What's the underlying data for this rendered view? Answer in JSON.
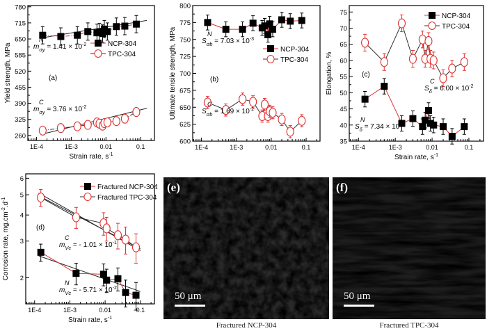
{
  "chart_data": [
    {
      "type": "scatter",
      "panel_label": "(a)",
      "xlabel": "Strain rate, s",
      "xlabel_sup": "-1",
      "ylabel": "Yield strength, MPa",
      "xscale": "log",
      "xlim": [
        5.6e-05,
        0.25
      ],
      "xticks": [
        0.0001,
        0.001,
        0.01,
        0.1
      ],
      "xtick_labels": [
        "1E-4",
        "1E-3",
        "0.01",
        "0.1"
      ],
      "ylim": [
        240,
        785
      ],
      "yticks": [
        260,
        325,
        390,
        455,
        520,
        585,
        650,
        715,
        780
      ],
      "yscale": "linear",
      "legend": "center-right",
      "series": [
        {
          "name": "NCP-304",
          "marker": "filled-square",
          "color": "#000000",
          "line_color": "#e03030",
          "line_style": "dashdot",
          "error": 35,
          "x": [
            0.00015,
            0.0005,
            0.0015,
            0.003,
            0.0055,
            0.0065,
            0.008,
            0.009,
            0.011,
            0.02,
            0.035,
            0.075
          ],
          "y": [
            665,
            660,
            665,
            680,
            675,
            678,
            672,
            690,
            680,
            700,
            702,
            710
          ]
        },
        {
          "name": "TPC-304",
          "marker": "open-circle",
          "color": "#e03030",
          "line_color": "#333333",
          "line_style": "dashdot",
          "error": 16,
          "x": [
            0.00015,
            0.0005,
            0.0015,
            0.003,
            0.0055,
            0.0065,
            0.008,
            0.009,
            0.011,
            0.02,
            0.035,
            0.075
          ],
          "y": [
            280,
            290,
            297,
            303,
            313,
            308,
            300,
            310,
            313,
            318,
            328,
            355
          ]
        }
      ],
      "fit_lines": [
        {
          "x": [
            0.00015,
            0.15
          ],
          "y": [
            655,
            725
          ]
        },
        {
          "x": [
            0.00015,
            0.15
          ],
          "y": [
            266,
            370
          ]
        }
      ],
      "annotations": [
        {
          "super": "N",
          "base": "m",
          "sub": "σy",
          "value": " = 1.41 × 10",
          "exp": "-2"
        },
        {
          "super": "C",
          "base": "m",
          "sub": "σy",
          "value": " = 3.76 × 10",
          "exp": "-2"
        }
      ]
    },
    {
      "type": "scatter",
      "panel_label": "(b)",
      "xlabel": "",
      "ylabel": "Ultimate tensile strength, MPa",
      "xscale": "log",
      "xlim": [
        5.6e-05,
        0.25
      ],
      "xticks": [
        0.0001,
        0.001,
        0.01,
        0.1
      ],
      "xtick_labels": [
        "1E-4",
        "1E-3",
        "0.01",
        "0.1"
      ],
      "ylim": [
        600,
        800
      ],
      "yticks": [
        600,
        625,
        650,
        675,
        700,
        725,
        750,
        775,
        800
      ],
      "yscale": "linear",
      "legend": "center-right",
      "series": [
        {
          "name": "NCP-304",
          "marker": "filled-square",
          "color": "#000000",
          "line_color": "#e03030",
          "line_style": "solid",
          "error": 11,
          "x": [
            0.00015,
            0.0005,
            0.0015,
            0.003,
            0.0055,
            0.0065,
            0.008,
            0.009,
            0.011,
            0.02,
            0.035,
            0.075
          ],
          "y": [
            775,
            765,
            765,
            774,
            767,
            770,
            757,
            773,
            765,
            779,
            777,
            778
          ]
        },
        {
          "name": "TPC-304",
          "marker": "open-circle",
          "color": "#e03030",
          "line_color": "#333333",
          "line_style": "solid",
          "error": 9,
          "x": [
            0.00015,
            0.0005,
            0.0015,
            0.003,
            0.0055,
            0.0065,
            0.008,
            0.009,
            0.011,
            0.02,
            0.035,
            0.075
          ],
          "y": [
            657,
            646,
            662,
            658,
            637,
            654,
            637,
            644,
            642,
            632,
            614,
            630
          ]
        }
      ],
      "fit_lines": [],
      "annotations": [
        {
          "super": "N",
          "base": "S",
          "sub": "σb",
          "value": " = 7.03 × 10",
          "exp": "-3"
        },
        {
          "super": "C",
          "base": "S",
          "sub": "σb",
          "value": " = 1.69 × 10",
          "exp": "-2"
        }
      ]
    },
    {
      "type": "scatter",
      "panel_label": "(c)",
      "xlabel": "Strain rate, s",
      "xlabel_sup": "-1",
      "ylabel": "Elongation, %",
      "xscale": "log",
      "xlim": [
        5.6e-05,
        0.25
      ],
      "xticks": [
        0.0001,
        0.001,
        0.01,
        0.1
      ],
      "xtick_labels": [
        "1E-4",
        "1E-3",
        "0.01",
        "0.1"
      ],
      "ylim": [
        35,
        77
      ],
      "yticks": [
        35,
        40,
        45,
        50,
        55,
        60,
        65,
        70,
        75
      ],
      "yscale": "linear",
      "legend": "top-right",
      "series": [
        {
          "name": "NCP-304",
          "marker": "filled-square",
          "color": "#000000",
          "line_color": "#e03030",
          "line_style": "solid",
          "error": 2.4,
          "x": [
            0.00015,
            0.0005,
            0.0015,
            0.003,
            0.0055,
            0.0065,
            0.008,
            0.009,
            0.011,
            0.02,
            0.035,
            0.075
          ],
          "y": [
            48,
            52,
            40.5,
            42,
            39.5,
            41.5,
            44.5,
            40.5,
            40,
            39.5,
            36.5,
            39.5
          ]
        },
        {
          "name": "TPC-304",
          "marker": "open-circle",
          "color": "#e03030",
          "line_color": "#333333",
          "line_style": "solid",
          "error": 2.6,
          "x": [
            0.00015,
            0.0005,
            0.0015,
            0.003,
            0.0055,
            0.0065,
            0.008,
            0.009,
            0.011,
            0.02,
            0.035,
            0.075
          ],
          "y": [
            65.5,
            59.5,
            71.5,
            60.5,
            66.5,
            60.5,
            66,
            60.5,
            60,
            54.5,
            57.5,
            59.5
          ]
        }
      ],
      "fit_lines": [],
      "annotations": [
        {
          "super": "C",
          "base": "S",
          "sub": "δ",
          "value": " = 6.00 × 10",
          "exp": "-2"
        },
        {
          "super": "N",
          "base": "S",
          "sub": "δ",
          "value": " = 7.34 × 10",
          "exp": "-3"
        }
      ]
    },
    {
      "type": "scatter",
      "panel_label": "(d)",
      "xlabel": "Strain rate, s",
      "xlabel_sup": "-1",
      "ylabel": "Corrosion rate, mg.cm",
      "ylabel_sup1": "-2",
      "ylabel_mid": ".d",
      "ylabel_sup2": "-1",
      "xscale": "log",
      "xlim": [
        5.6e-05,
        0.25
      ],
      "xticks": [
        0.0001,
        0.001,
        0.01,
        0.1
      ],
      "xtick_labels": [
        "1E-4",
        "1E-3",
        "0.01",
        "0.1"
      ],
      "ylim": [
        1.5,
        6.3
      ],
      "yticks": [
        2,
        3,
        4,
        5,
        6
      ],
      "yscale": "log",
      "legend": "top-right",
      "series": [
        {
          "name": "Fractured NCP-304",
          "marker": "filled-square",
          "color": "#000000",
          "line_color": "#e03030",
          "line_style": "solid",
          "error": 0.25,
          "x": [
            0.00015,
            0.0015,
            0.009,
            0.011,
            0.023,
            0.038,
            0.075
          ],
          "y": [
            2.65,
            2.1,
            2.08,
            1.95,
            1.98,
            1.7,
            1.65
          ]
        },
        {
          "name": "Fractured TPC-304",
          "marker": "open-circle",
          "color": "#e03030",
          "line_color": "#333333",
          "line_style": "solid",
          "error": 0.45,
          "x": [
            0.00015,
            0.0015,
            0.009,
            0.011,
            0.023,
            0.038,
            0.075
          ],
          "y": [
            4.85,
            3.9,
            3.65,
            3.45,
            3.2,
            3.05,
            2.8
          ]
        }
      ],
      "fit_lines": [
        {
          "x": [
            0.00013,
            0.1
          ],
          "y": [
            5.1,
            2.7
          ]
        },
        {
          "x": [
            0.00013,
            0.1
          ],
          "y": [
            4.95,
            2.75
          ]
        },
        {
          "x": [
            0.00013,
            0.1
          ],
          "y": [
            2.55,
            1.72
          ]
        }
      ],
      "annotations": [
        {
          "super": "C",
          "base": "m",
          "sub": "Vc",
          "value": " = - 1.01 × 10",
          "exp": "-1"
        },
        {
          "super": "N",
          "base": "m",
          "sub": "Vc",
          "value": " = - 5.71 × 10",
          "exp": "-2"
        }
      ]
    }
  ],
  "images": [
    {
      "panel_label": "(e)",
      "scale_bar": "50 μm",
      "caption": "Fractured NCP-304"
    },
    {
      "panel_label": "(f)",
      "scale_bar": "50 μm",
      "caption": "Fractured TPC-304"
    }
  ]
}
